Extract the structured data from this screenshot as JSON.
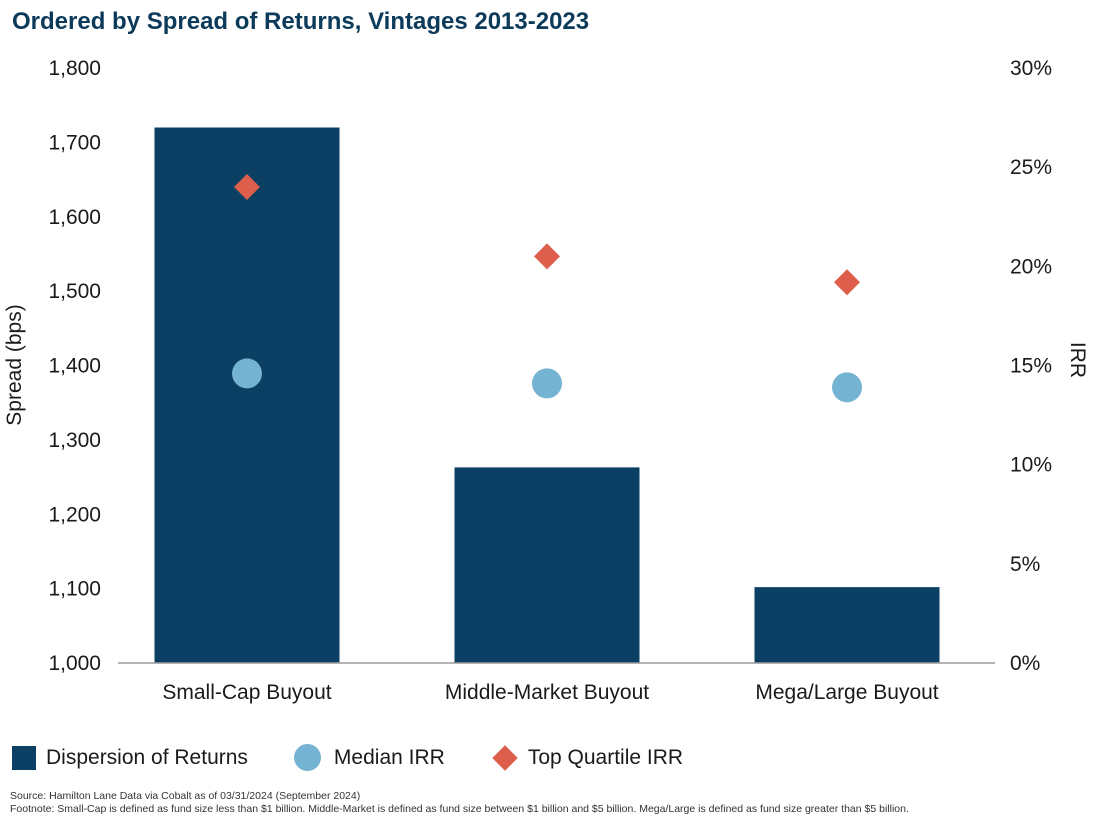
{
  "title": "Ordered by Spread of Returns, Vintages 2013-2023",
  "colors": {
    "bar": "#0b3f63",
    "median": "#74b3d1",
    "top_quartile": "#dc5e4b",
    "title": "#0b3a5a"
  },
  "chart_data": {
    "type": "bar",
    "categories": [
      "Small-Cap Buyout",
      "Middle-Market Buyout",
      "Mega/Large Buyout"
    ],
    "series": [
      {
        "name": "Dispersion of Returns",
        "axis": "left",
        "mark": "bar",
        "values": [
          1720,
          1263,
          1102
        ]
      },
      {
        "name": "Median IRR",
        "axis": "right",
        "mark": "circle",
        "values": [
          14.6,
          14.1,
          13.9
        ]
      },
      {
        "name": "Top Quartile IRR",
        "axis": "right",
        "mark": "diamond",
        "values": [
          24.0,
          20.5,
          19.2
        ]
      }
    ],
    "ylabel": "Spread (bps)",
    "ylim": [
      1000,
      1800
    ],
    "yticks": [
      "1,000",
      "1,100",
      "1,200",
      "1,300",
      "1,400",
      "1,500",
      "1,600",
      "1,700",
      "1,800"
    ],
    "y2label": "IRR",
    "y2lim": [
      0,
      30
    ],
    "y2ticks": [
      "0%",
      "5%",
      "10%",
      "15%",
      "20%",
      "25%",
      "30%"
    ],
    "legend_position": "bottom-left"
  },
  "legend": {
    "dispersion": "Dispersion of Returns",
    "median": "Median IRR",
    "top_quartile": "Top Quartile IRR"
  },
  "footer": {
    "source": "Source: Hamilton Lane Data via Cobalt as of 03/31/2024 (September 2024)",
    "footnote": "Footnote: Small-Cap is defined as fund size less than $1 billion. Middle-Market is defined as fund size between $1 billion and $5 billion. Mega/Large is defined as fund size greater than $5 billion."
  }
}
